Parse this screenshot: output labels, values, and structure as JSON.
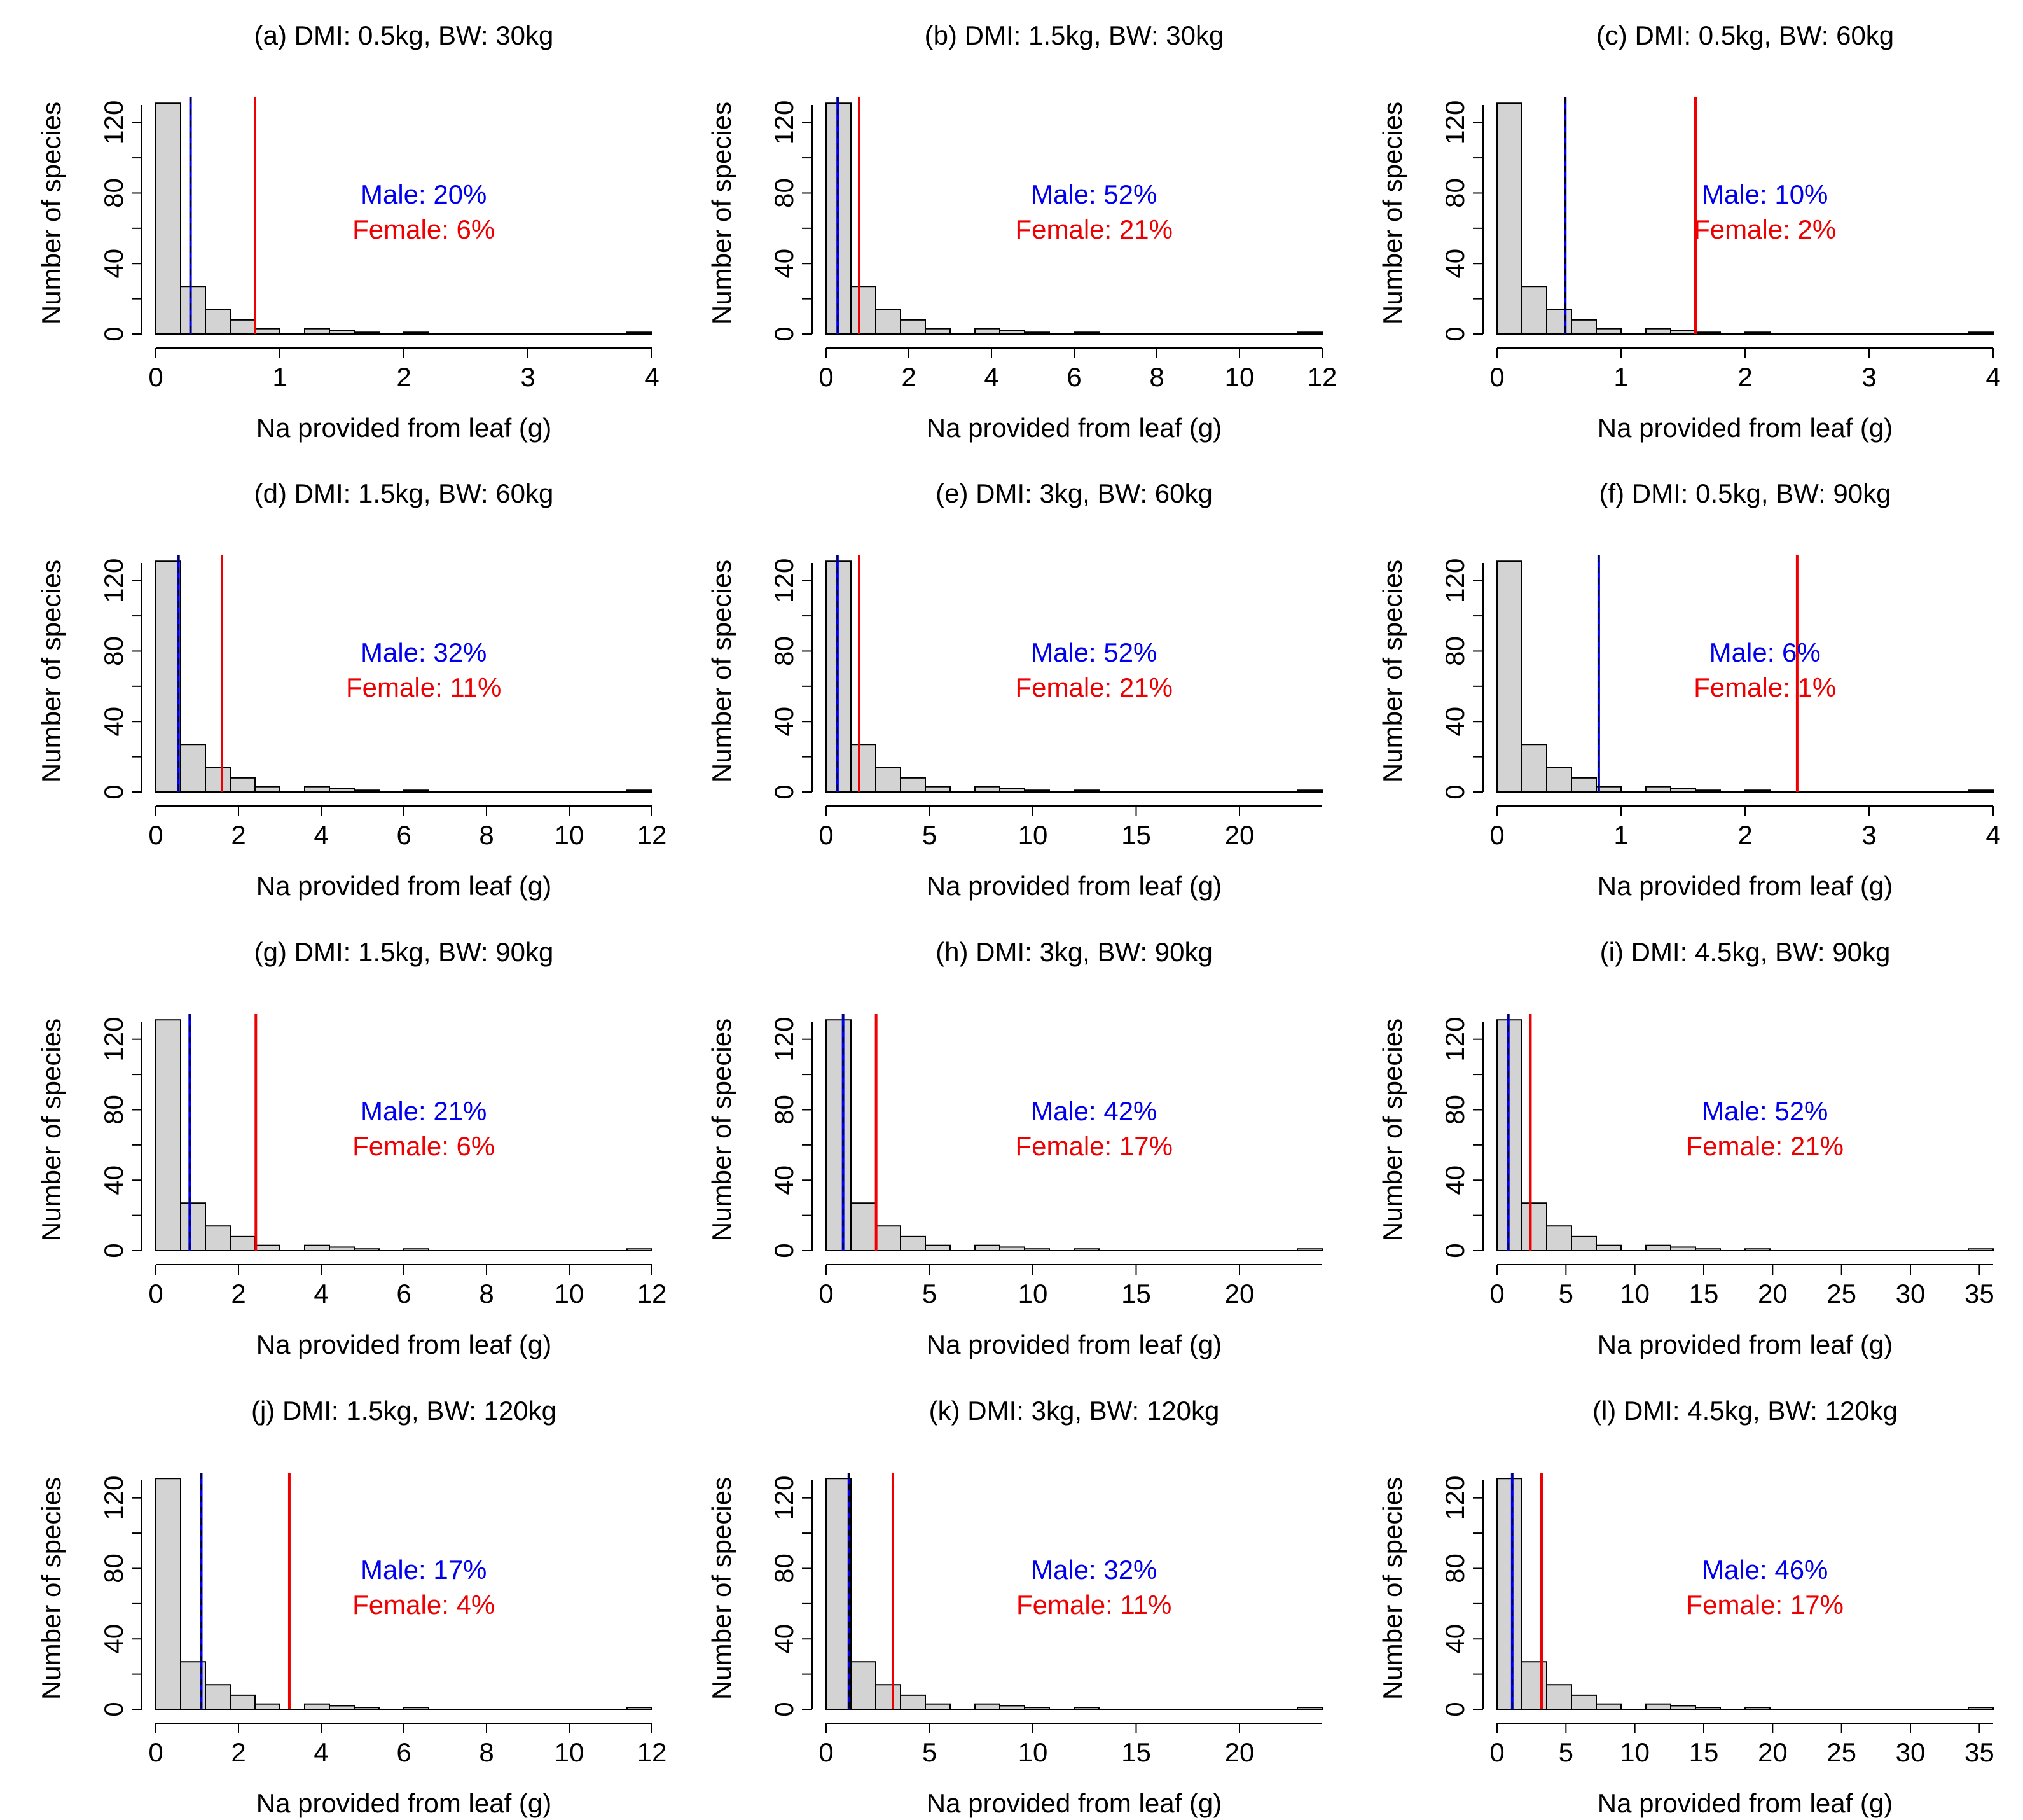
{
  "colors": {
    "male": "#0000ee",
    "female": "#ee0000",
    "bar_fill": "#d3d3d3",
    "bar_stroke": "#000000"
  },
  "chart_data": [
    {
      "type": "bar",
      "title": "(a) DMI: 0.5kg, BW: 30kg",
      "xlabel": "Na provided from leaf (g)",
      "ylabel": "Number of species",
      "xlim": [
        0,
        4
      ],
      "ylim": [
        0,
        130
      ],
      "xticks": [
        "0",
        "1",
        "2",
        "3",
        "4"
      ],
      "yticks": [
        "0",
        "40",
        "80",
        "120"
      ],
      "bin_width": 0.2,
      "counts": [
        131,
        27,
        14,
        8,
        3,
        0,
        3,
        2,
        1,
        0,
        1,
        0,
        0,
        0,
        0,
        0,
        0,
        0,
        0,
        1
      ],
      "male_line": 0.28,
      "female_line": 0.8,
      "male_label": "Male: 20%",
      "female_label": "Female: 6%"
    },
    {
      "type": "bar",
      "title": "(b) DMI: 1.5kg, BW: 30kg",
      "xlabel": "Na provided from leaf (g)",
      "ylabel": "Number of species",
      "xlim": [
        0,
        12
      ],
      "ylim": [
        0,
        130
      ],
      "xticks": [
        "0",
        "2",
        "4",
        "6",
        "8",
        "10",
        "12"
      ],
      "yticks": [
        "0",
        "40",
        "80",
        "120"
      ],
      "bin_width": 0.6,
      "counts": [
        131,
        27,
        14,
        8,
        3,
        0,
        3,
        2,
        1,
        0,
        1,
        0,
        0,
        0,
        0,
        0,
        0,
        0,
        0,
        1
      ],
      "male_line": 0.28,
      "female_line": 0.8,
      "male_label": "Male: 52%",
      "female_label": "Female: 21%"
    },
    {
      "type": "bar",
      "title": "(c) DMI: 0.5kg, BW: 60kg",
      "xlabel": "Na provided from leaf (g)",
      "ylabel": "Number of species",
      "xlim": [
        0,
        4
      ],
      "ylim": [
        0,
        130
      ],
      "xticks": [
        "0",
        "1",
        "2",
        "3",
        "4"
      ],
      "yticks": [
        "0",
        "40",
        "80",
        "120"
      ],
      "bin_width": 0.2,
      "counts": [
        131,
        27,
        14,
        8,
        3,
        0,
        3,
        2,
        1,
        0,
        1,
        0,
        0,
        0,
        0,
        0,
        0,
        0,
        0,
        1
      ],
      "male_line": 0.55,
      "female_line": 1.6,
      "male_label": "Male: 10%",
      "female_label": "Female: 2%"
    },
    {
      "type": "bar",
      "title": "(d) DMI: 1.5kg, BW: 60kg",
      "xlabel": "Na provided from leaf (g)",
      "ylabel": "Number of species",
      "xlim": [
        0,
        12
      ],
      "ylim": [
        0,
        130
      ],
      "xticks": [
        "0",
        "2",
        "4",
        "6",
        "8",
        "10",
        "12"
      ],
      "yticks": [
        "0",
        "40",
        "80",
        "120"
      ],
      "bin_width": 0.6,
      "counts": [
        131,
        27,
        14,
        8,
        3,
        0,
        3,
        2,
        1,
        0,
        1,
        0,
        0,
        0,
        0,
        0,
        0,
        0,
        0,
        1
      ],
      "male_line": 0.55,
      "female_line": 1.6,
      "male_label": "Male: 32%",
      "female_label": "Female: 11%"
    },
    {
      "type": "bar",
      "title": "(e) DMI: 3kg, BW: 60kg",
      "xlabel": "Na provided from leaf (g)",
      "ylabel": "Number of species",
      "xlim": [
        0,
        24
      ],
      "ylim": [
        0,
        130
      ],
      "xticks": [
        "0",
        "5",
        "10",
        "15",
        "20"
      ],
      "xtick_values": [
        0,
        5,
        10,
        15,
        20
      ],
      "yticks": [
        "0",
        "40",
        "80",
        "120"
      ],
      "bin_width": 1.2,
      "counts": [
        131,
        27,
        14,
        8,
        3,
        0,
        3,
        2,
        1,
        0,
        1,
        0,
        0,
        0,
        0,
        0,
        0,
        0,
        0,
        1
      ],
      "male_line": 0.55,
      "female_line": 1.6,
      "male_label": "Male: 52%",
      "female_label": "Female: 21%"
    },
    {
      "type": "bar",
      "title": "(f) DMI: 0.5kg, BW: 90kg",
      "xlabel": "Na provided from leaf (g)",
      "ylabel": "Number of species",
      "xlim": [
        0,
        4
      ],
      "ylim": [
        0,
        130
      ],
      "xticks": [
        "0",
        "1",
        "2",
        "3",
        "4"
      ],
      "yticks": [
        "0",
        "40",
        "80",
        "120"
      ],
      "bin_width": 0.2,
      "counts": [
        131,
        27,
        14,
        8,
        3,
        0,
        3,
        2,
        1,
        0,
        1,
        0,
        0,
        0,
        0,
        0,
        0,
        0,
        0,
        1
      ],
      "male_line": 0.82,
      "female_line": 2.42,
      "male_label": "Male: 6%",
      "female_label": "Female: 1%"
    },
    {
      "type": "bar",
      "title": "(g) DMI: 1.5kg, BW: 90kg",
      "xlabel": "Na provided from leaf (g)",
      "ylabel": "Number of species",
      "xlim": [
        0,
        12
      ],
      "ylim": [
        0,
        130
      ],
      "xticks": [
        "0",
        "2",
        "4",
        "6",
        "8",
        "10",
        "12"
      ],
      "yticks": [
        "0",
        "40",
        "80",
        "120"
      ],
      "bin_width": 0.6,
      "counts": [
        131,
        27,
        14,
        8,
        3,
        0,
        3,
        2,
        1,
        0,
        1,
        0,
        0,
        0,
        0,
        0,
        0,
        0,
        0,
        1
      ],
      "male_line": 0.82,
      "female_line": 2.42,
      "male_label": "Male: 21%",
      "female_label": "Female: 6%"
    },
    {
      "type": "bar",
      "title": "(h) DMI: 3kg, BW: 90kg",
      "xlabel": "Na provided from leaf (g)",
      "ylabel": "Number of species",
      "xlim": [
        0,
        24
      ],
      "ylim": [
        0,
        130
      ],
      "xticks": [
        "0",
        "5",
        "10",
        "15",
        "20"
      ],
      "yticks": [
        "0",
        "40",
        "80",
        "120"
      ],
      "bin_width": 1.2,
      "counts": [
        131,
        27,
        14,
        8,
        3,
        0,
        3,
        2,
        1,
        0,
        1,
        0,
        0,
        0,
        0,
        0,
        0,
        0,
        0,
        1
      ],
      "male_line": 0.82,
      "female_line": 2.42,
      "male_label": "Male: 42%",
      "female_label": "Female: 17%"
    },
    {
      "type": "bar",
      "title": "(i) DMI: 4.5kg, BW: 90kg",
      "xlabel": "Na provided from leaf (g)",
      "ylabel": "Number of species",
      "xlim": [
        0,
        36
      ],
      "ylim": [
        0,
        130
      ],
      "xticks": [
        "0",
        "5",
        "10",
        "15",
        "20",
        "25",
        "30",
        "35"
      ],
      "yticks": [
        "0",
        "40",
        "80",
        "120"
      ],
      "bin_width": 1.8,
      "counts": [
        131,
        27,
        14,
        8,
        3,
        0,
        3,
        2,
        1,
        0,
        1,
        0,
        0,
        0,
        0,
        0,
        0,
        0,
        0,
        1
      ],
      "male_line": 0.82,
      "female_line": 2.42,
      "male_label": "Male: 52%",
      "female_label": "Female: 21%"
    },
    {
      "type": "bar",
      "title": "(j) DMI: 1.5kg, BW: 120kg",
      "xlabel": "Na provided from leaf (g)",
      "ylabel": "Number of species",
      "xlim": [
        0,
        12
      ],
      "ylim": [
        0,
        130
      ],
      "xticks": [
        "0",
        "2",
        "4",
        "6",
        "8",
        "10",
        "12"
      ],
      "yticks": [
        "0",
        "40",
        "80",
        "120"
      ],
      "bin_width": 0.6,
      "counts": [
        131,
        27,
        14,
        8,
        3,
        0,
        3,
        2,
        1,
        0,
        1,
        0,
        0,
        0,
        0,
        0,
        0,
        0,
        0,
        1
      ],
      "male_line": 1.1,
      "female_line": 3.23,
      "male_label": "Male: 17%",
      "female_label": "Female: 4%"
    },
    {
      "type": "bar",
      "title": "(k) DMI: 3kg, BW: 120kg",
      "xlabel": "Na provided from leaf (g)",
      "ylabel": "Number of species",
      "xlim": [
        0,
        24
      ],
      "ylim": [
        0,
        130
      ],
      "xticks": [
        "0",
        "5",
        "10",
        "15",
        "20"
      ],
      "yticks": [
        "0",
        "40",
        "80",
        "120"
      ],
      "bin_width": 1.2,
      "counts": [
        131,
        27,
        14,
        8,
        3,
        0,
        3,
        2,
        1,
        0,
        1,
        0,
        0,
        0,
        0,
        0,
        0,
        0,
        0,
        1
      ],
      "male_line": 1.1,
      "female_line": 3.23,
      "male_label": "Male: 32%",
      "female_label": "Female: 11%"
    },
    {
      "type": "bar",
      "title": "(l) DMI: 4.5kg, BW: 120kg",
      "xlabel": "Na provided from leaf (g)",
      "ylabel": "Number of species",
      "xlim": [
        0,
        36
      ],
      "ylim": [
        0,
        130
      ],
      "xticks": [
        "0",
        "5",
        "10",
        "15",
        "20",
        "25",
        "30",
        "35"
      ],
      "yticks": [
        "0",
        "40",
        "80",
        "120"
      ],
      "bin_width": 1.8,
      "counts": [
        131,
        27,
        14,
        8,
        3,
        0,
        3,
        2,
        1,
        0,
        1,
        0,
        0,
        0,
        0,
        0,
        0,
        0,
        0,
        1
      ],
      "male_line": 1.1,
      "female_line": 3.23,
      "male_label": "Male: 46%",
      "female_label": "Female: 17%"
    }
  ]
}
